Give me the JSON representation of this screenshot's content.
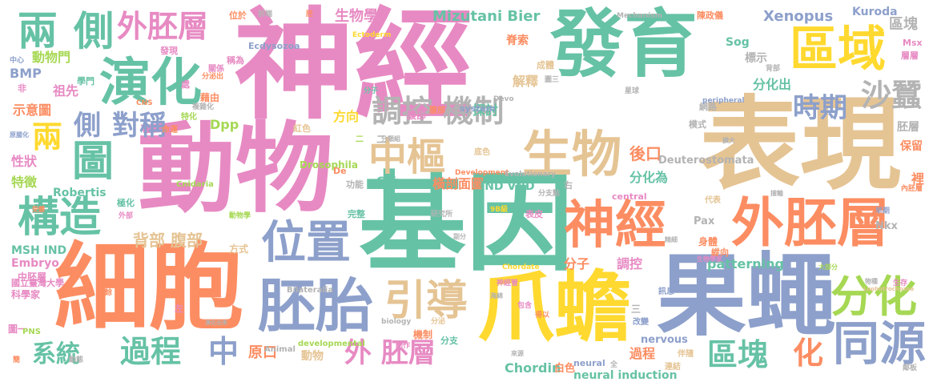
{
  "palette": {
    "green": "#66c2a5",
    "orange": "#fc8d62",
    "blue": "#8da0cb",
    "pink": "#e78ac3",
    "lime": "#a6d854",
    "yellow": "#ffd92f",
    "tan": "#e5c494",
    "gray": "#b3b3b3"
  },
  "words": [
    {
      "text": "神經",
      "color": "pink"
    },
    {
      "text": "基因",
      "color": "green"
    },
    {
      "text": "動物",
      "color": "pink"
    },
    {
      "text": "表現",
      "color": "tan"
    },
    {
      "text": "發育",
      "color": "green"
    },
    {
      "text": "細胞",
      "color": "orange"
    },
    {
      "text": "果蠅",
      "color": "blue"
    },
    {
      "text": "爪蟾",
      "color": "yellow"
    },
    {
      "text": "胚胎",
      "color": "blue"
    },
    {
      "text": "外胚層",
      "color": "orange"
    },
    {
      "text": "神經",
      "color": "orange"
    },
    {
      "text": "演化",
      "color": "green"
    },
    {
      "text": "生物",
      "color": "tan"
    },
    {
      "text": "區域",
      "color": "yellow"
    },
    {
      "text": "位置",
      "color": "blue"
    },
    {
      "text": "中樞",
      "color": "tan"
    },
    {
      "text": "構造",
      "color": "green"
    },
    {
      "text": "分化",
      "color": "lime"
    },
    {
      "text": "引導",
      "color": "tan"
    },
    {
      "text": "同源",
      "color": "blue"
    },
    {
      "text": "兩",
      "color": "green"
    },
    {
      "text": "側",
      "color": "green"
    },
    {
      "text": "外胚層",
      "color": "pink"
    },
    {
      "text": "調控 機制",
      "color": "gray"
    },
    {
      "text": "圖",
      "color": "green"
    },
    {
      "text": "兩",
      "color": "yellow"
    },
    {
      "text": "時期",
      "color": "blue"
    },
    {
      "text": "沙蠶",
      "color": "gray"
    },
    {
      "text": "對稱",
      "color": "blue"
    },
    {
      "text": "側",
      "color": "blue"
    },
    {
      "text": "過程",
      "color": "green"
    },
    {
      "text": "系統",
      "color": "green"
    },
    {
      "text": "中",
      "color": "blue"
    },
    {
      "text": "外 胚層",
      "color": "pink"
    },
    {
      "text": "區塊",
      "color": "green"
    },
    {
      "text": "化",
      "color": "orange"
    },
    {
      "text": "動物門",
      "color": "lime"
    },
    {
      "text": "生物學",
      "color": "pink"
    },
    {
      "text": "Mizutani Bier",
      "color": "green"
    },
    {
      "text": "Xenopus",
      "color": "blue"
    },
    {
      "text": "區塊",
      "color": "gray"
    },
    {
      "text": "BMP",
      "color": "blue"
    },
    {
      "text": "祖先",
      "color": "pink"
    },
    {
      "text": "示意圖",
      "color": "orange"
    },
    {
      "text": "性狀",
      "color": "pink"
    },
    {
      "text": "特徵",
      "color": "lime"
    },
    {
      "text": "Dpp",
      "color": "lime"
    },
    {
      "text": "方向",
      "color": "yellow"
    },
    {
      "text": "探討",
      "color": "green"
    },
    {
      "text": "橫剖面圖",
      "color": "orange"
    },
    {
      "text": "後口",
      "color": "orange"
    },
    {
      "text": "分化為",
      "color": "green"
    },
    {
      "text": "背部 腹部",
      "color": "tan"
    },
    {
      "text": "分子",
      "color": "orange"
    },
    {
      "text": "調控",
      "color": "pink"
    },
    {
      "text": "patterning",
      "color": "green"
    },
    {
      "text": "原口",
      "color": "orange"
    },
    {
      "text": "動物",
      "color": "tan"
    },
    {
      "text": "Chordin",
      "color": "green"
    },
    {
      "text": "過程",
      "color": "orange"
    },
    {
      "text": "MSH IND",
      "color": "green"
    },
    {
      "text": "Embryo",
      "color": "pink"
    },
    {
      "text": "Robertis",
      "color": "green"
    },
    {
      "text": "IND VND",
      "color": "green"
    },
    {
      "text": "Gsh",
      "color": "green"
    },
    {
      "text": "Sog",
      "color": "green"
    },
    {
      "text": "標示",
      "color": "gray"
    },
    {
      "text": "分化出",
      "color": "green"
    },
    {
      "text": "胚層",
      "color": "gray"
    },
    {
      "text": "保留",
      "color": "orange"
    },
    {
      "text": "裡",
      "color": "orange"
    },
    {
      "text": "解釋",
      "color": "tan"
    },
    {
      "text": "脊索",
      "color": "orange"
    },
    {
      "text": "Drosophila",
      "color": "lime"
    },
    {
      "text": "Deuterostomata",
      "color": "gray"
    },
    {
      "text": "neural induction",
      "color": "green"
    },
    {
      "text": "nervous",
      "color": "blue"
    },
    {
      "text": "白色",
      "color": "orange"
    },
    {
      "text": "Kuroda",
      "color": "blue"
    },
    {
      "text": "Nkx",
      "color": "gray"
    },
    {
      "text": "Pax",
      "color": "gray"
    },
    {
      "text": "中胚層",
      "color": "pink"
    },
    {
      "text": "科學家",
      "color": "pink"
    },
    {
      "text": "圖一",
      "color": "pink"
    },
    {
      "text": "方式",
      "color": "tan"
    },
    {
      "text": "腹部",
      "color": "pink"
    },
    {
      "text": "紅色",
      "color": "tan"
    },
    {
      "text": "機制",
      "color": "orange"
    },
    {
      "text": "分支",
      "color": "green"
    },
    {
      "text": "system",
      "color": "blue"
    },
    {
      "text": "Ecdysozoa",
      "color": "blue"
    },
    {
      "text": "Ectoderm",
      "color": "yellow"
    },
    {
      "text": "Mechanism",
      "color": "gray"
    },
    {
      "text": "陳政儀",
      "color": "orange"
    },
    {
      "text": "Msx",
      "color": "pink"
    },
    {
      "text": "層層",
      "color": "pink"
    },
    {
      "text": "網路",
      "color": "gray"
    },
    {
      "text": "模式",
      "color": "gray"
    },
    {
      "text": "縱向",
      "color": "orange"
    },
    {
      "text": "身體",
      "color": "orange"
    },
    {
      "text": "功能",
      "color": "gray"
    },
    {
      "text": "完整",
      "color": "green"
    },
    {
      "text": "表皮",
      "color": "pink"
    },
    {
      "text": "二",
      "color": "gray"
    },
    {
      "text": "三",
      "color": "gray"
    },
    {
      "text": "左",
      "color": "pink"
    },
    {
      "text": "右",
      "color": "gray"
    },
    {
      "text": "Animal",
      "color": "gray"
    },
    {
      "text": "developmental",
      "color": "lime"
    },
    {
      "text": "neural",
      "color": "blue"
    },
    {
      "text": "central",
      "color": "pink"
    },
    {
      "text": "Bilateralia",
      "color": "gray"
    },
    {
      "text": "Cnidaria",
      "color": "lime"
    },
    {
      "text": "Development",
      "color": "orange"
    },
    {
      "text": "Evolutionary",
      "color": "gray"
    },
    {
      "text": "peripheral",
      "color": "blue"
    },
    {
      "text": "Chordate",
      "color": "yellow"
    },
    {
      "text": "CNS",
      "color": "orange"
    },
    {
      "text": "PNS",
      "color": "lime"
    },
    {
      "text": "Devo",
      "color": "gray"
    },
    {
      "text": "biology",
      "color": "gray"
    },
    {
      "text": "國立臺灣大學",
      "color": "pink"
    },
    {
      "text": "研究所",
      "color": "gray"
    },
    {
      "text": "分子",
      "color": "green"
    },
    {
      "text": "改變",
      "color": "blue"
    },
    {
      "text": "訊息",
      "color": "blue"
    },
    {
      "text": "代表",
      "color": "tan"
    },
    {
      "text": "連結",
      "color": "tan"
    },
    {
      "text": "伴隨",
      "color": "tan"
    },
    {
      "text": "鄰板",
      "color": "gray"
    },
    {
      "text": "早期",
      "color": "blue"
    },
    {
      "text": "神經管",
      "color": "pink"
    },
    {
      "text": "包含",
      "color": "pink"
    },
    {
      "text": "得以",
      "color": "orange"
    },
    {
      "text": "底色",
      "color": "tan"
    },
    {
      "text": "成體",
      "color": "tan"
    },
    {
      "text": "腹部",
      "color": "orange"
    },
    {
      "text": "背部",
      "color": "gray"
    },
    {
      "text": "圖三",
      "color": "gray"
    },
    {
      "text": "極化",
      "color": "green"
    },
    {
      "text": "外部",
      "color": "pink"
    },
    {
      "text": "動物學",
      "color": "lime"
    },
    {
      "text": "剩餘",
      "color": "orange"
    },
    {
      "text": "學門",
      "color": "green"
    },
    {
      "text": "中心",
      "color": "blue"
    },
    {
      "text": "非",
      "color": "pink"
    },
    {
      "text": "原腸化",
      "color": "blue"
    },
    {
      "text": "受體",
      "color": "orange"
    },
    {
      "text": "發現",
      "color": "pink"
    },
    {
      "text": "稱為",
      "color": "pink"
    },
    {
      "text": "位於",
      "color": "orange"
    },
    {
      "text": "前端",
      "color": "gray"
    },
    {
      "text": "胚",
      "color": "orange"
    },
    {
      "text": "關係",
      "color": "pink"
    },
    {
      "text": "處",
      "color": "pink"
    },
    {
      "text": "藉由",
      "color": "orange"
    },
    {
      "text": "特化",
      "color": "lime"
    },
    {
      "text": "複雜化",
      "color": "gray"
    },
    {
      "text": "命運",
      "color": "orange"
    },
    {
      "text": "分泌出",
      "color": "orange"
    },
    {
      "text": "星球",
      "color": "gray"
    },
    {
      "text": "分類組",
      "color": "gray"
    },
    {
      "text": "生物學家",
      "color": "pink"
    },
    {
      "text": "大部分",
      "color": "lime"
    },
    {
      "text": "生存",
      "color": "pink"
    },
    {
      "text": "物種",
      "color": "gray"
    },
    {
      "text": "內胚層",
      "color": "orange"
    },
    {
      "text": "演化出來",
      "color": "gray"
    },
    {
      "text": "動態",
      "color": "gray"
    },
    {
      "text": "簡",
      "color": "orange"
    },
    {
      "text": "全",
      "color": "gray"
    },
    {
      "text": "De",
      "color": "orange"
    },
    {
      "text": "二",
      "color": "lime"
    },
    {
      "text": "分泌",
      "color": "tan"
    },
    {
      "text": "分支點",
      "color": "gray"
    },
    {
      "text": "Lophotrochozoa",
      "color": "tan"
    },
    {
      "text": "擴大",
      "color": "gray"
    },
    {
      "text": "9B級",
      "color": "yellow"
    },
    {
      "text": "動作",
      "color": "pink"
    },
    {
      "text": "海綿",
      "color": "gray"
    },
    {
      "text": "來源",
      "color": "gray"
    },
    {
      "text": "副分",
      "color": "gray"
    },
    {
      "text": "撞輪",
      "color": "gray"
    },
    {
      "text": "精細",
      "color": "gray"
    }
  ]
}
